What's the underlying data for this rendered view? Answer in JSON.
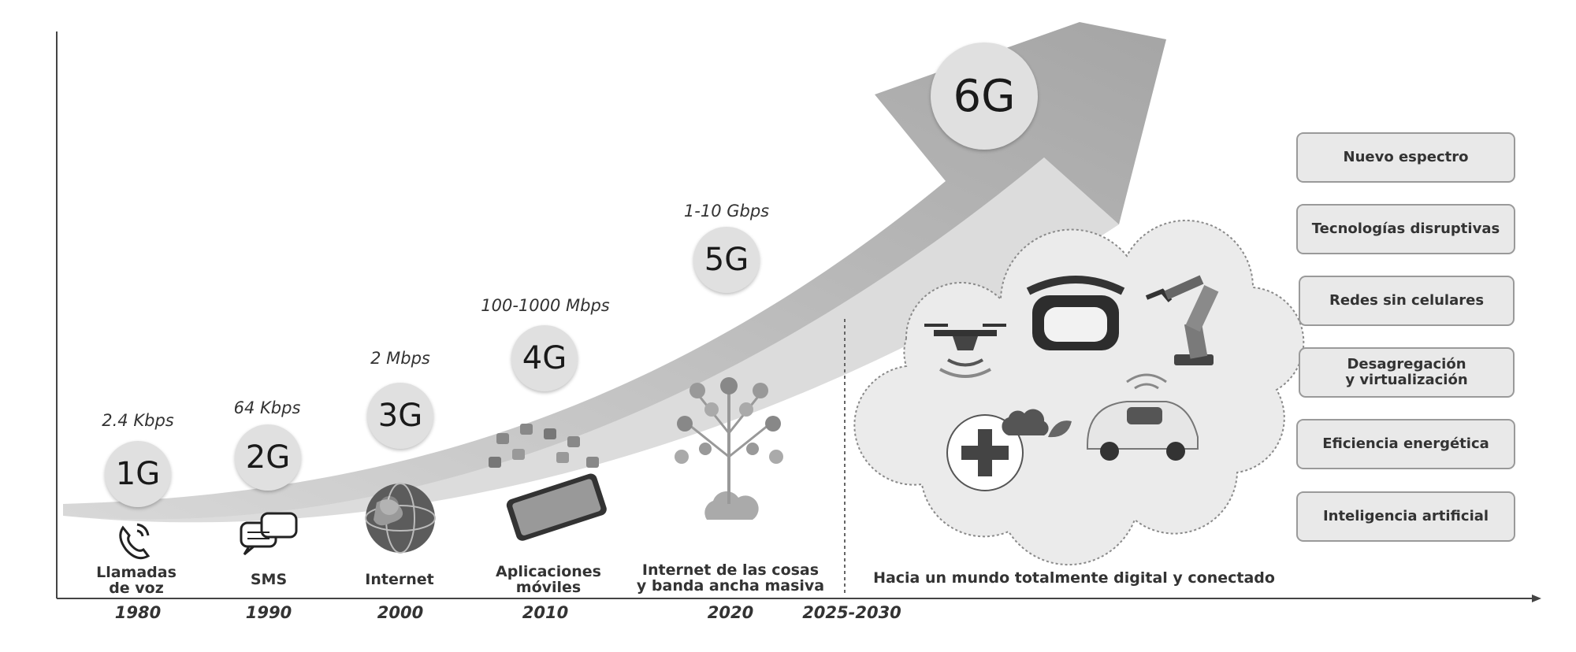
{
  "generations": [
    {
      "name": "1G",
      "speed": "2.4 Kbps",
      "label_line1": "Llamadas",
      "label_line2": "de voz",
      "year": "1980",
      "icon": "phone-icon"
    },
    {
      "name": "2G",
      "speed": "64 Kbps",
      "label_line1": "SMS",
      "label_line2": "",
      "year": "1990",
      "icon": "chat-icon"
    },
    {
      "name": "3G",
      "speed": "2 Mbps",
      "label_line1": "Internet",
      "label_line2": "",
      "year": "2000",
      "icon": "globe-icon"
    },
    {
      "name": "4G",
      "speed": "100-1000 Mbps",
      "label_line1": "Aplicaciones",
      "label_line2": "móviles",
      "year": "2010",
      "icon": "smartphone-apps-icon"
    },
    {
      "name": "5G",
      "speed": "1-10 Gbps",
      "label_line1": "Internet de las cosas",
      "label_line2": "y banda ancha masiva",
      "year": "2020",
      "icon": "iot-tree-icon"
    },
    {
      "name": "6G",
      "speed": "",
      "label_line1": "Hacia un mundo totalmente digital y conectado",
      "label_line2": "",
      "year": "2025-2030",
      "icon": "cloud-icon"
    }
  ],
  "cloud_icons": [
    "drone-icon",
    "vr-headset-icon",
    "robot-arm-icon",
    "medical-cross-icon",
    "autonomous-car-icon"
  ],
  "features": [
    {
      "line1": "Nuevo espectro",
      "line2": ""
    },
    {
      "line1": "Tecnologías disruptivas",
      "line2": ""
    },
    {
      "line1": "Redes sin celulares",
      "line2": ""
    },
    {
      "line1": "Desagregación",
      "line2": "y virtualización"
    },
    {
      "line1": "Eficiencia energética",
      "line2": ""
    },
    {
      "line1": "Inteligencia artificial",
      "line2": ""
    }
  ],
  "colors": {
    "arrow": "#b5b5b5",
    "circle": "#e0e0e0",
    "pill_bg": "#e9e9e9",
    "pill_border": "#9a9a9a",
    "cloud": "#e8e8e8"
  }
}
